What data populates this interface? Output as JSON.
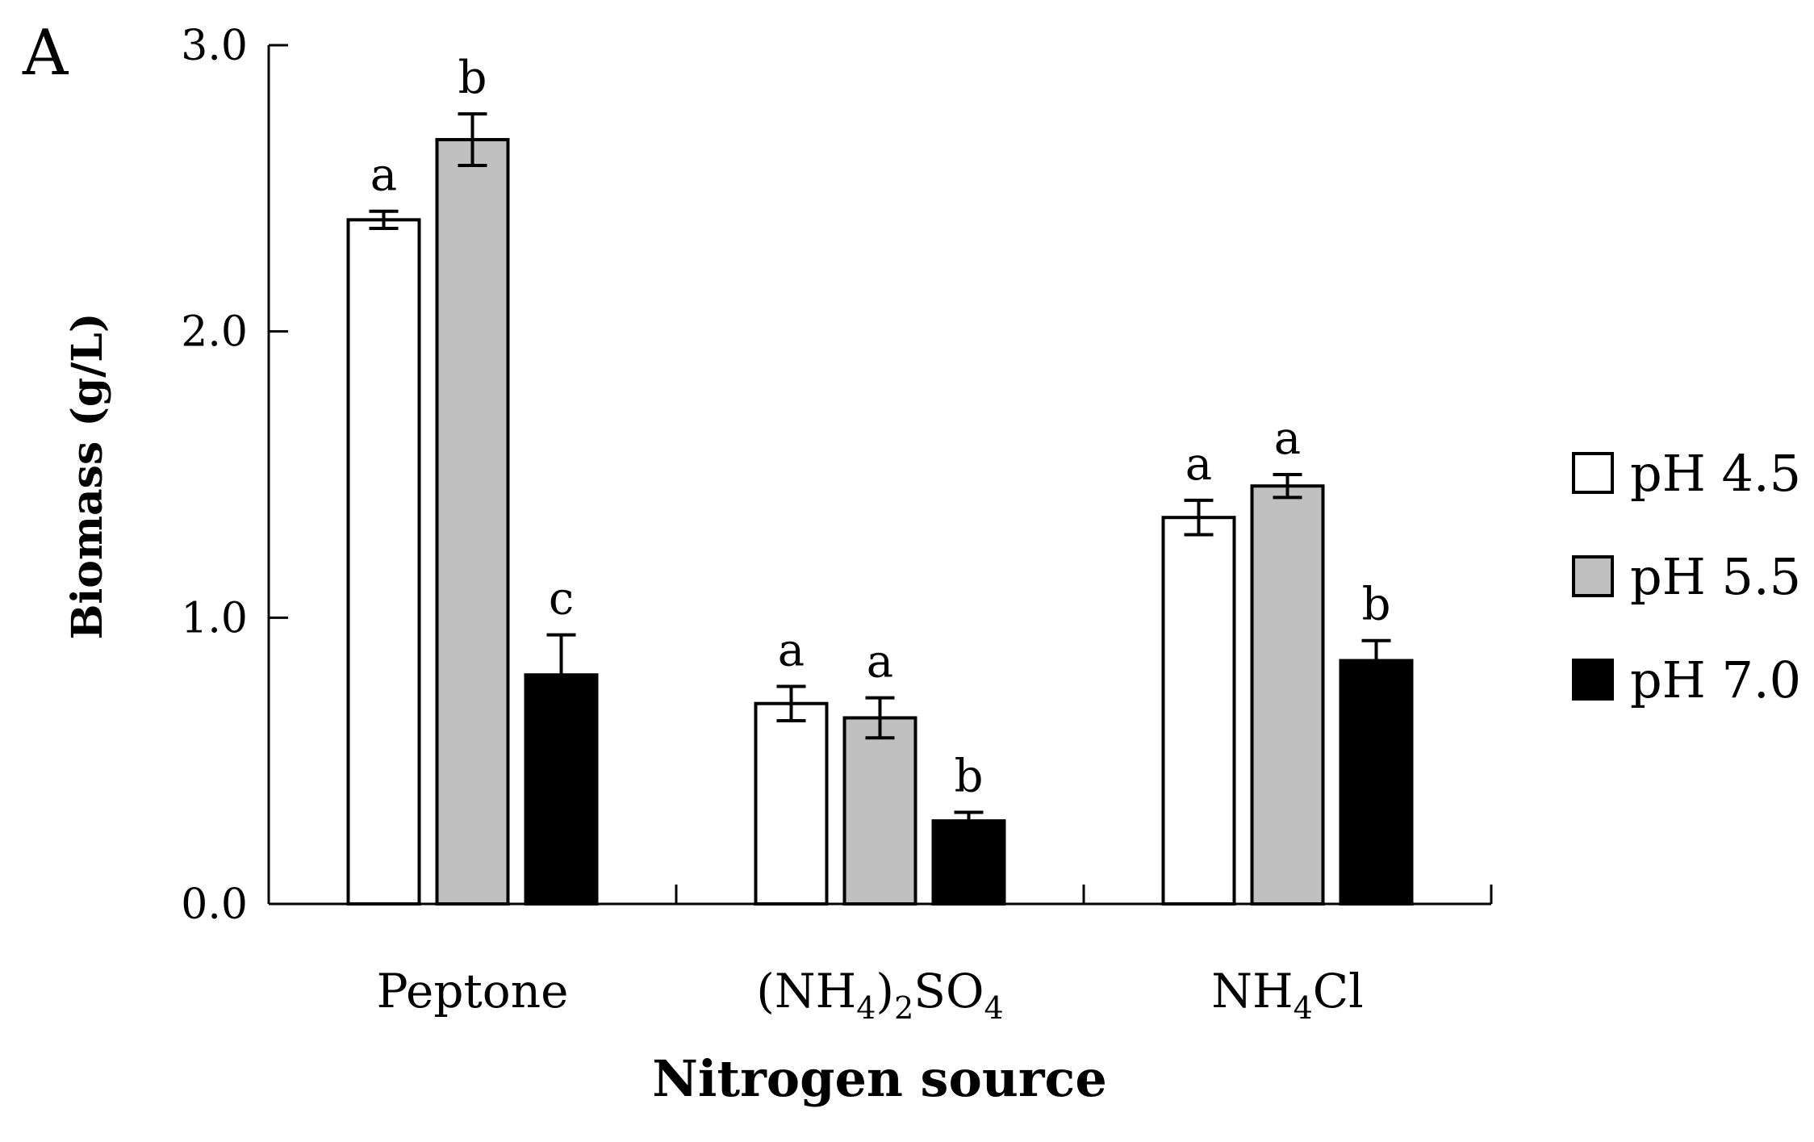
{
  "panel_label": "A",
  "chart_data": {
    "type": "bar",
    "title": "",
    "xlabel": "Nitrogen source",
    "ylabel": "Biomass (g/L)",
    "ylim": [
      0,
      3
    ],
    "yticks": [
      "0.0",
      "1.0",
      "2.0",
      "3.0"
    ],
    "grid": false,
    "legend_position": "right",
    "categories": [
      {
        "base": "Peptone",
        "parts": [
          {
            "t": "Peptone",
            "sub": false
          }
        ]
      },
      {
        "base": "(NH4)2SO4",
        "parts": [
          {
            "t": "(NH",
            "sub": false
          },
          {
            "t": "4",
            "sub": true
          },
          {
            "t": ")",
            "sub": false
          },
          {
            "t": "2",
            "sub": true
          },
          {
            "t": "SO",
            "sub": false
          },
          {
            "t": "4",
            "sub": true
          }
        ]
      },
      {
        "base": "NH4Cl",
        "parts": [
          {
            "t": "NH",
            "sub": false
          },
          {
            "t": "4",
            "sub": true
          },
          {
            "t": "Cl",
            "sub": false
          }
        ]
      }
    ],
    "series": [
      {
        "name": "pH 4.5",
        "color": "#ffffff",
        "values": [
          2.39,
          0.7,
          1.35
        ],
        "errors": [
          0.03,
          0.06,
          0.06
        ],
        "labels": [
          "a",
          "a",
          "a"
        ]
      },
      {
        "name": "pH 5.5",
        "color": "#c0c0c0",
        "values": [
          2.67,
          0.65,
          1.46
        ],
        "errors": [
          0.09,
          0.07,
          0.04
        ],
        "labels": [
          "b",
          "a",
          "a"
        ]
      },
      {
        "name": "pH 7.0",
        "color": "#000000",
        "values": [
          0.8,
          0.29,
          0.85
        ],
        "errors": [
          0.14,
          0.03,
          0.07
        ],
        "labels": [
          "c",
          "b",
          "b"
        ]
      }
    ]
  }
}
